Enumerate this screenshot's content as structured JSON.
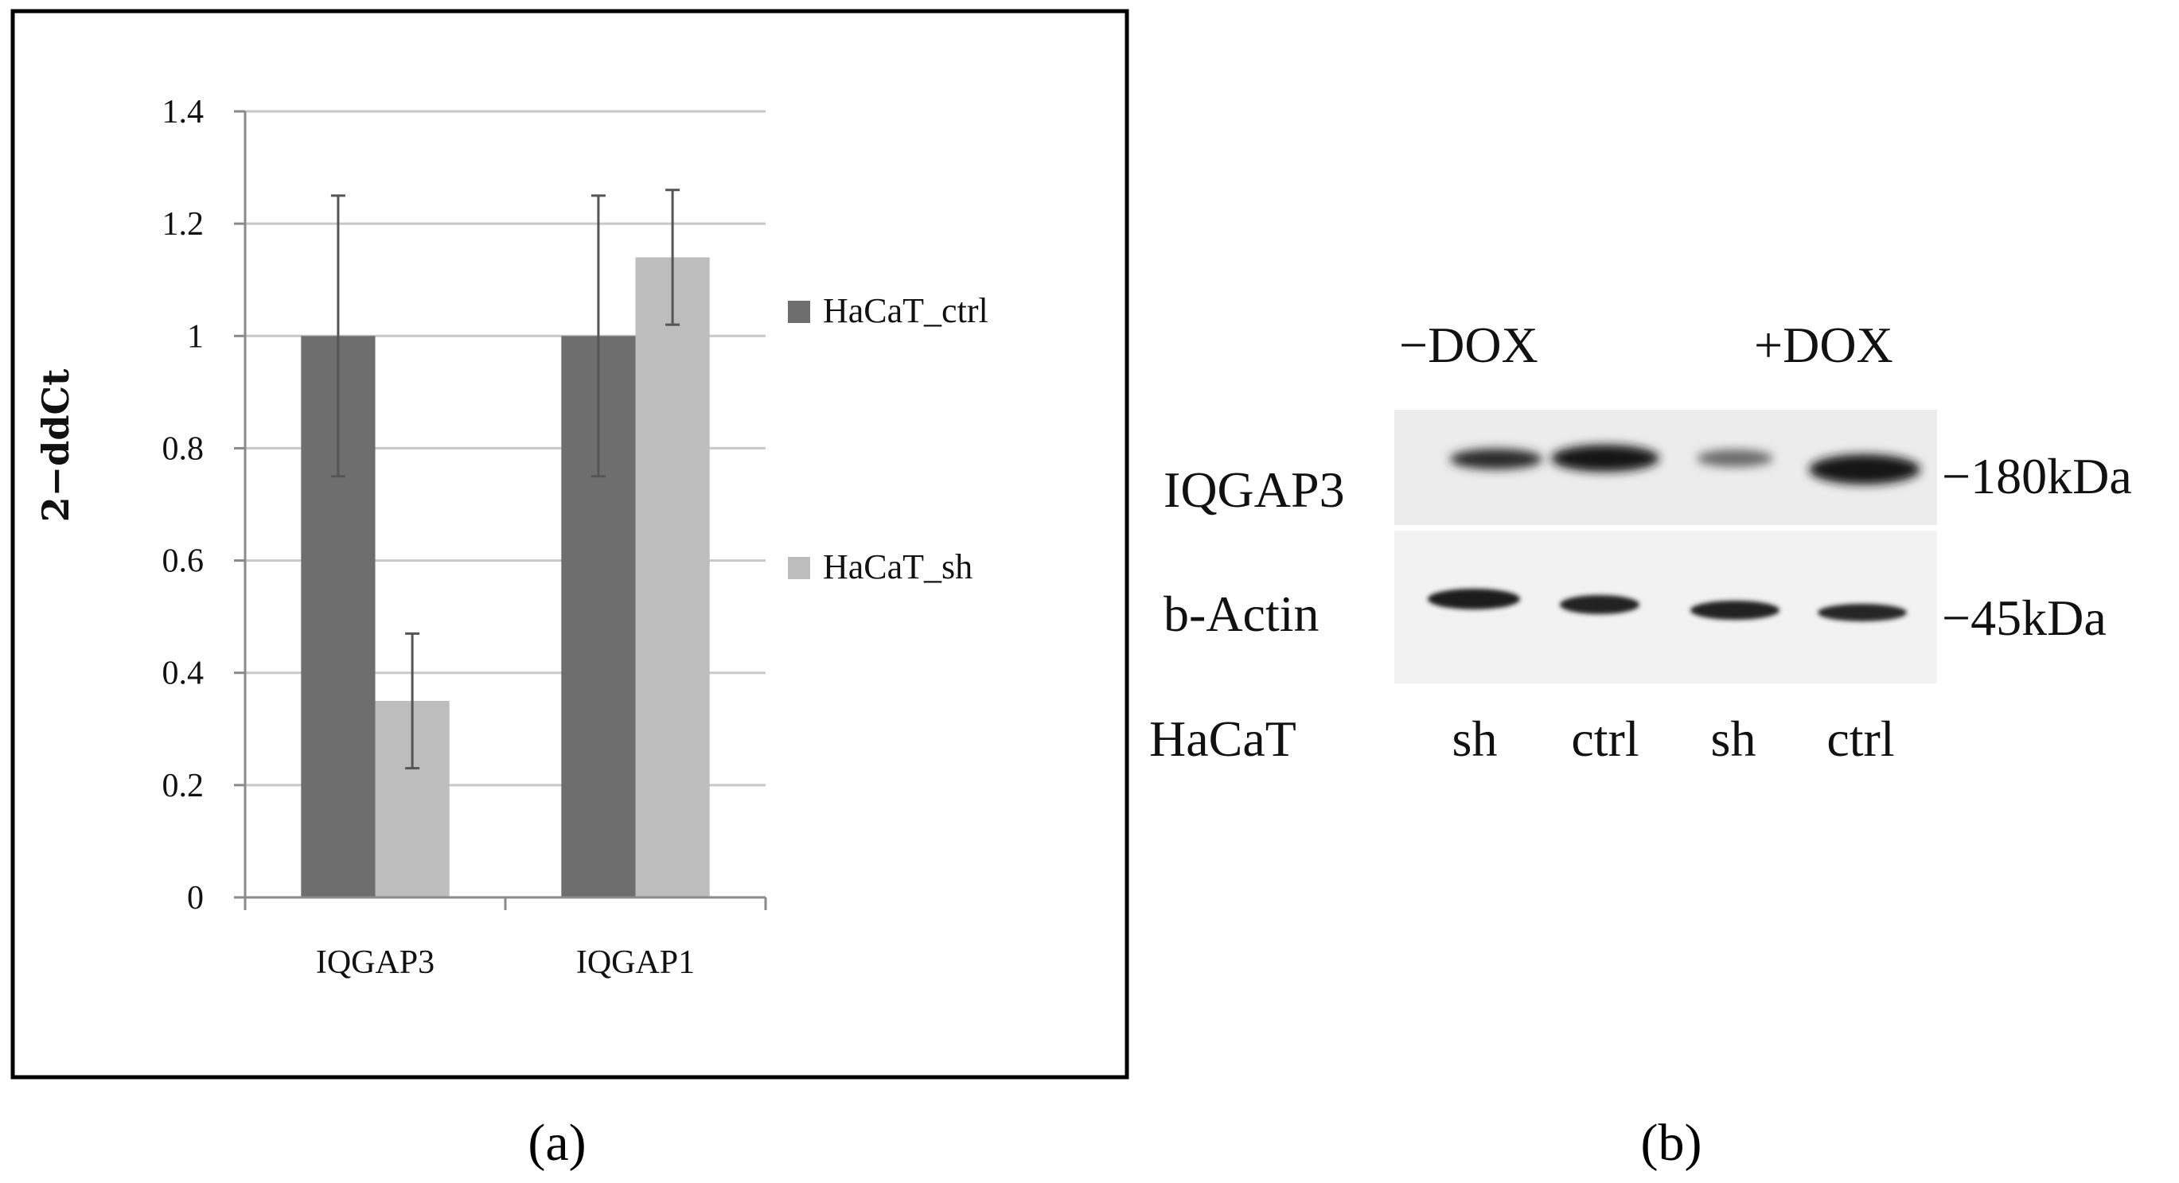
{
  "chart_data": [
    {
      "type": "bar",
      "categories": [
        "IQGAP3",
        "IQGAP1"
      ],
      "series": [
        {
          "name": "HaCaT_ctrl",
          "values": [
            1.0,
            1.0
          ],
          "errors": [
            0.25,
            0.25
          ],
          "color": "#6e6e6e"
        },
        {
          "name": "HaCaT_sh",
          "values": [
            0.35,
            1.14
          ],
          "errors": [
            0.12,
            0.12
          ],
          "color": "#bdbdbd"
        }
      ],
      "ylabel": "2−ddCt",
      "yticks": [
        "0",
        "0.2",
        "0.4",
        "0.6",
        "0.8",
        "1",
        "1.2",
        "1.4"
      ],
      "ylim": [
        0,
        1.4
      ],
      "grid": true,
      "legend_position": "right"
    }
  ],
  "panel_a_label": "(a)",
  "panel_b_label": "(b)",
  "western_blot": {
    "conditions": [
      "−DOX",
      "+DOX"
    ],
    "rows": [
      {
        "label": "IQGAP3",
        "marker": "−180kDa"
      },
      {
        "label": "b-Actin",
        "marker": "−45kDa"
      }
    ],
    "cell_label": "HaCaT",
    "lanes": [
      "sh",
      "ctrl",
      "sh",
      "ctrl"
    ]
  }
}
